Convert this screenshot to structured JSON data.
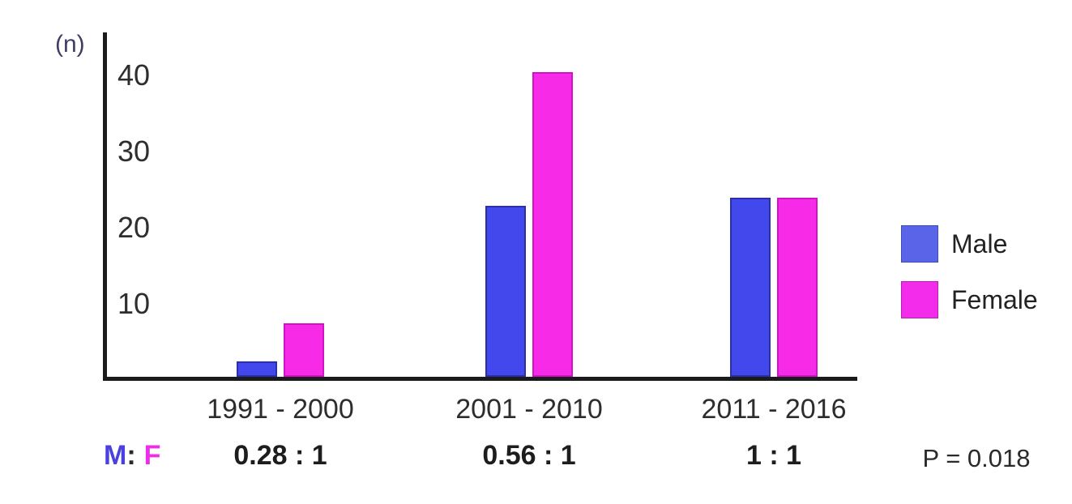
{
  "chart_data": {
    "type": "bar",
    "categories": [
      "1991 - 2000",
      "2001 - 2010",
      "2011 - 2016"
    ],
    "series": [
      {
        "name": "Male",
        "values": [
          2,
          22.4,
          23.5
        ]
      },
      {
        "name": "Female",
        "values": [
          7,
          40,
          23.5
        ]
      }
    ],
    "title": "",
    "xlabel": "",
    "ylabel": "(n)",
    "yticks": [
      10,
      20,
      30,
      40
    ],
    "ylim": [
      0,
      45
    ],
    "grid": false,
    "legend_position": "right"
  },
  "ratio_row": {
    "m_label": "M",
    "colon": ":",
    "f_label": "F",
    "ratios": [
      "0.28 : 1",
      "0.56 : 1",
      "1 : 1"
    ],
    "p_value": "P = 0.018"
  },
  "colors": {
    "male_bar": "#4348ec",
    "male_bar_border": "#2b2fa8",
    "male_legend": "#5a64e8",
    "female_bar": "#f72ae8",
    "female_bar_border": "#cf14c4",
    "female_legend": "#f32cec",
    "male_text": "#4a3fe0",
    "female_text": "#ee2de8",
    "axis": "#1b1b1b"
  }
}
